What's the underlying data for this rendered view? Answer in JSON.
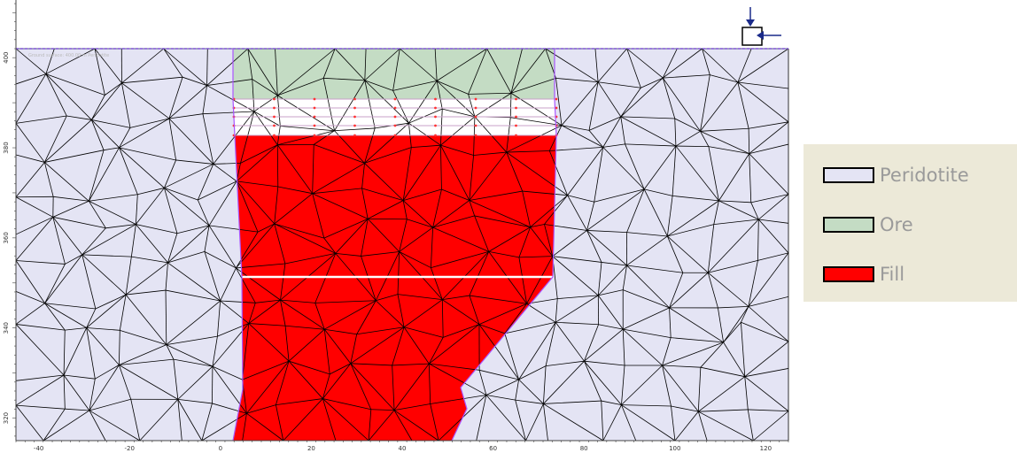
{
  "model": {
    "ground_label": "Ground surface: 400.00 m Peridotite",
    "x_axis_ticks": [
      "-40",
      "-20",
      "0",
      "20",
      "40",
      "60",
      "80",
      "100",
      "120"
    ],
    "y_axis_ticks": [
      "400",
      "380",
      "360",
      "340",
      "320"
    ],
    "x_axis_range": [
      -45,
      125
    ],
    "y_axis_range": [
      315,
      402
    ]
  },
  "materials": {
    "peridotite_color": "#e4e4f4",
    "ore_color": "#c4dcc4",
    "fill_color": "#ff0000",
    "boundary_color": "#aa55ff",
    "mesh_color": "#000000",
    "node_color": "#ff3333"
  },
  "legend": {
    "items": [
      {
        "label": "Peridotite",
        "color": "#e4e4f4"
      },
      {
        "label": "Ore",
        "color": "#c4dcc4"
      },
      {
        "label": "Fill",
        "color": "#ff0000"
      }
    ]
  },
  "icons": [
    "load-arrow-down-icon",
    "load-arrow-left-icon",
    "support-box-icon"
  ]
}
